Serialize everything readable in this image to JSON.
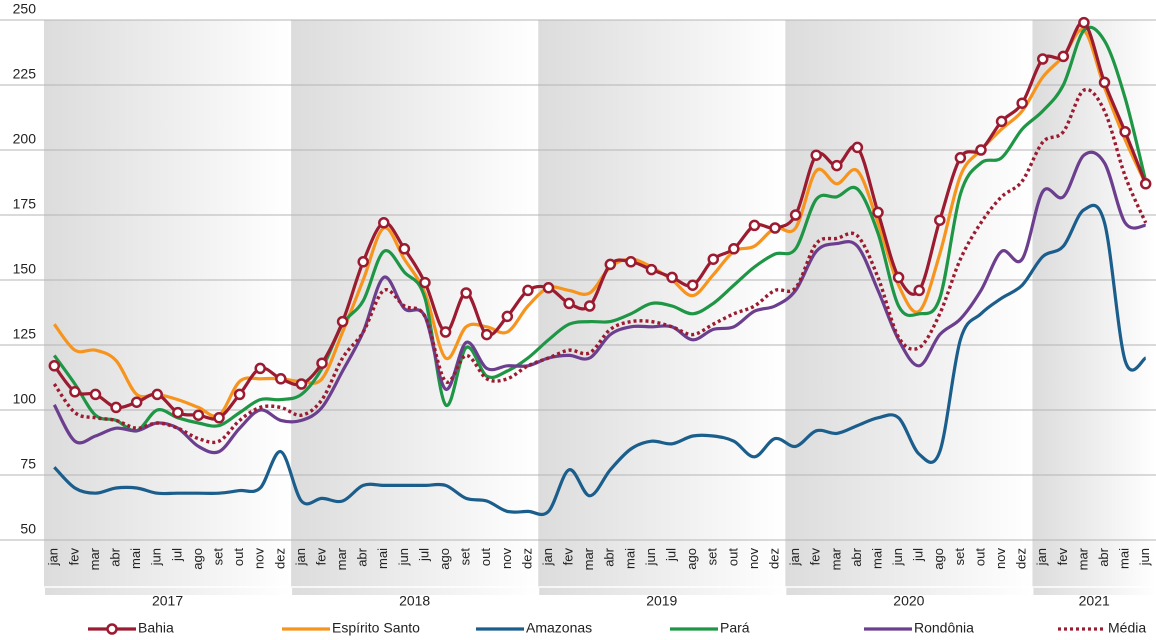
{
  "chart_data": {
    "type": "line",
    "categories": [
      "jan",
      "fev",
      "mar",
      "abr",
      "mai",
      "jun",
      "jul",
      "ago",
      "set",
      "out",
      "nov",
      "dez",
      "jan",
      "fev",
      "mar",
      "abr",
      "mai",
      "jun",
      "jul",
      "ago",
      "set",
      "out",
      "nov",
      "dez",
      "jan",
      "fev",
      "mar",
      "abr",
      "mai",
      "jun",
      "jul",
      "ago",
      "set",
      "out",
      "nov",
      "dez",
      "jan",
      "fev",
      "mar",
      "abr",
      "mai",
      "jun",
      "jul",
      "ago",
      "set",
      "out",
      "nov",
      "dez",
      "jan",
      "fev",
      "mar",
      "abr",
      "mai",
      "jun"
    ],
    "year_labels": [
      "2017",
      "2018",
      "2019",
      "2020",
      "2021"
    ],
    "ylim": [
      50,
      250
    ],
    "yticks": [
      50,
      75,
      100,
      125,
      150,
      175,
      200,
      225,
      250
    ],
    "grid": true,
    "legend": "bottom",
    "series": [
      {
        "name": "Bahia",
        "color": "#9b1b30",
        "markers": true,
        "values": [
          117,
          107,
          106,
          101,
          103,
          106,
          99,
          98,
          97,
          106,
          116,
          112,
          110,
          118,
          134,
          157,
          172,
          162,
          149,
          130,
          145,
          129,
          136,
          146,
          147,
          141,
          140,
          156,
          157,
          154,
          151,
          148,
          158,
          162,
          171,
          170,
          175,
          198,
          194,
          201,
          176,
          151,
          146,
          173,
          197,
          200,
          211,
          218,
          235,
          236,
          249,
          226,
          207,
          187
        ]
      },
      {
        "name": "Espírito Santo",
        "color": "#f7941d",
        "values": [
          133,
          123,
          123,
          119,
          106,
          106,
          104,
          101,
          98,
          111,
          112,
          112,
          111,
          112,
          130,
          150,
          170,
          158,
          145,
          120,
          132,
          132,
          130,
          140,
          147,
          146,
          145,
          155,
          158,
          155,
          150,
          144,
          152,
          161,
          163,
          170,
          170,
          192,
          187,
          192,
          172,
          148,
          138,
          160,
          190,
          200,
          208,
          215,
          228,
          236,
          246,
          224,
          204,
          187
        ]
      },
      {
        "name": "Amazonas",
        "color": "#1b5e8c",
        "values": [
          78,
          70,
          68,
          70,
          70,
          68,
          68,
          68,
          68,
          69,
          70,
          84,
          65,
          66,
          65,
          71,
          71,
          71,
          71,
          71,
          66,
          65,
          61,
          61,
          61,
          77,
          67,
          77,
          85,
          88,
          87,
          90,
          90,
          88,
          82,
          89,
          86,
          92,
          91,
          94,
          97,
          97,
          83,
          84,
          127,
          137,
          143,
          148,
          159,
          163,
          177,
          172,
          119,
          120
        ]
      },
      {
        "name": "Pará",
        "color": "#1e9645",
        "values": [
          121,
          110,
          98,
          96,
          92,
          100,
          97,
          95,
          94,
          99,
          104,
          104,
          106,
          116,
          133,
          142,
          161,
          153,
          143,
          102,
          124,
          113,
          115,
          120,
          127,
          133,
          134,
          134,
          137,
          141,
          140,
          137,
          141,
          148,
          155,
          160,
          162,
          181,
          182,
          185,
          168,
          140,
          137,
          143,
          183,
          195,
          197,
          208,
          215,
          225,
          246,
          242,
          220,
          188
        ]
      },
      {
        "name": "Rondônia",
        "color": "#6b3f8e",
        "values": [
          102,
          88,
          90,
          93,
          92,
          95,
          93,
          86,
          84,
          93,
          100,
          96,
          96,
          101,
          115,
          130,
          151,
          139,
          136,
          108,
          126,
          116,
          117,
          117,
          120,
          121,
          120,
          129,
          132,
          132,
          132,
          127,
          131,
          132,
          138,
          140,
          146,
          161,
          164,
          163,
          146,
          127,
          117,
          129,
          135,
          146,
          161,
          158,
          184,
          182,
          198,
          195,
          172,
          171
        ]
      },
      {
        "name": "Média",
        "color": "#9b1b30",
        "style": "dotted",
        "values": [
          110,
          99,
          97,
          96,
          93,
          95,
          93,
          89,
          88,
          96,
          101,
          101,
          98,
          104,
          120,
          130,
          146,
          140,
          136,
          111,
          121,
          112,
          112,
          117,
          120,
          123,
          122,
          131,
          134,
          134,
          132,
          129,
          133,
          137,
          140,
          146,
          147,
          164,
          166,
          167,
          151,
          128,
          124,
          137,
          158,
          172,
          182,
          188,
          203,
          207,
          223,
          215,
          190,
          172
        ]
      }
    ]
  }
}
